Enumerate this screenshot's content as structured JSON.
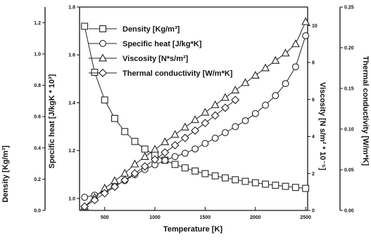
{
  "chart_data": {
    "type": "line",
    "xlabel": "Temperature [K]",
    "xlim": [
      250,
      2520
    ],
    "xticks": [
      "500",
      "1000",
      "1500",
      "2000",
      "2500"
    ],
    "axes": {
      "density": {
        "label": "Density [Kg/m³]",
        "lim": [
          0,
          1.3
        ],
        "ticks": [
          "0.0",
          "0.2",
          "0.4",
          "0.6",
          "0.8",
          "1.0",
          "1.2"
        ]
      },
      "specific_heat": {
        "label": "Specific heat [J/kgK * 10³]",
        "lim": [
          0.95,
          1.8
        ],
        "ticks": [
          "1.0",
          "1.2",
          "1.4",
          "1.6",
          "1.8"
        ]
      },
      "viscosity": {
        "label": "Viscosity [N s/m² * 10⁻⁵]",
        "lim": [
          0,
          11
        ],
        "ticks": [
          "0",
          "2",
          "4",
          "6",
          "8",
          "10"
        ]
      },
      "thermal_conductivity": {
        "label": "Thermal conductivity [W/m*K]",
        "lim": [
          0,
          0.25
        ],
        "ticks": [
          "0.00",
          "0.05",
          "0.10",
          "0.15",
          "0.20",
          "0.25"
        ]
      }
    },
    "legend": {
      "position": "top-left"
    },
    "series": [
      {
        "name": "Density [Kg/m³]",
        "marker": "square",
        "axis": "density",
        "x": [
          300,
          400,
          500,
          600,
          700,
          800,
          900,
          1000,
          1100,
          1200,
          1300,
          1400,
          1500,
          1600,
          1700,
          1800,
          1900,
          2000,
          2100,
          2200,
          2300,
          2400,
          2500
        ],
        "y": [
          1.177,
          0.883,
          0.706,
          0.588,
          0.504,
          0.441,
          0.392,
          0.353,
          0.321,
          0.294,
          0.272,
          0.252,
          0.235,
          0.221,
          0.208,
          0.196,
          0.186,
          0.177,
          0.168,
          0.161,
          0.154,
          0.147,
          0.141
        ]
      },
      {
        "name": "Specific heat [J/kg*K]",
        "marker": "circle",
        "axis": "specific_heat",
        "x": [
          300,
          400,
          500,
          600,
          700,
          800,
          900,
          1000,
          1100,
          1200,
          1300,
          1400,
          1500,
          1600,
          1700,
          1800,
          1900,
          2000,
          2100,
          2200,
          2300,
          2400,
          2500
        ],
        "y": [
          1.005,
          1.014,
          1.03,
          1.051,
          1.075,
          1.099,
          1.121,
          1.141,
          1.159,
          1.175,
          1.189,
          1.207,
          1.23,
          1.252,
          1.275,
          1.3,
          1.325,
          1.355,
          1.39,
          1.43,
          1.48,
          1.55,
          1.68
        ]
      },
      {
        "name": "Viscosity [N*s/m²]",
        "marker": "triangle",
        "axis": "viscosity",
        "x": [
          300,
          400,
          500,
          600,
          700,
          800,
          900,
          1000,
          1100,
          1200,
          1300,
          1400,
          1500,
          1600,
          1700,
          1800,
          1900,
          2000,
          2100,
          2200,
          2300,
          2400,
          2500
        ],
        "y": [
          0.2,
          0.7,
          1.2,
          1.6,
          2.0,
          2.5,
          2.9,
          3.3,
          3.7,
          4.1,
          4.5,
          4.9,
          5.3,
          5.7,
          6.1,
          6.5,
          6.9,
          7.3,
          7.7,
          8.1,
          8.5,
          9.0,
          10.2
        ]
      },
      {
        "name": "Thermal conductivity [W/m*K]",
        "marker": "diamond",
        "axis": "thermal_conductivity",
        "x": [
          300,
          400,
          500,
          600,
          700,
          800,
          900,
          1000,
          1100,
          1200,
          1300,
          1400,
          1500,
          1600,
          1700,
          1800
        ],
        "y": [
          0.0048,
          0.0127,
          0.0211,
          0.0291,
          0.0372,
          0.0456,
          0.0541,
          0.0626,
          0.0713,
          0.0801,
          0.0891,
          0.0982,
          0.1074,
          0.1167,
          0.1262,
          0.1358
        ]
      }
    ]
  }
}
